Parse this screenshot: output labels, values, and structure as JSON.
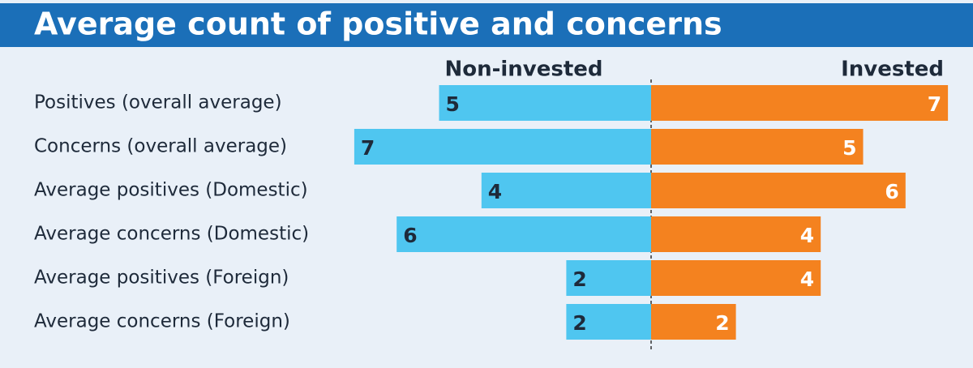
{
  "chart_data": {
    "type": "diverging_bar",
    "title": "Average count of positive and concerns",
    "categories": [
      "Positives (overall average)",
      "Concerns (overall average)",
      "Average positives (Domestic)",
      "Average concerns (Domestic)",
      "Average positives (Foreign)",
      "Average concerns (Foreign)"
    ],
    "series": [
      {
        "name": "Non-invested",
        "color": "#4fc6f0",
        "values": [
          5,
          7,
          4,
          6,
          2,
          2
        ]
      },
      {
        "name": "Invested",
        "color": "#f4821f",
        "values": [
          7,
          5,
          6,
          4,
          4,
          2
        ]
      }
    ]
  }
}
